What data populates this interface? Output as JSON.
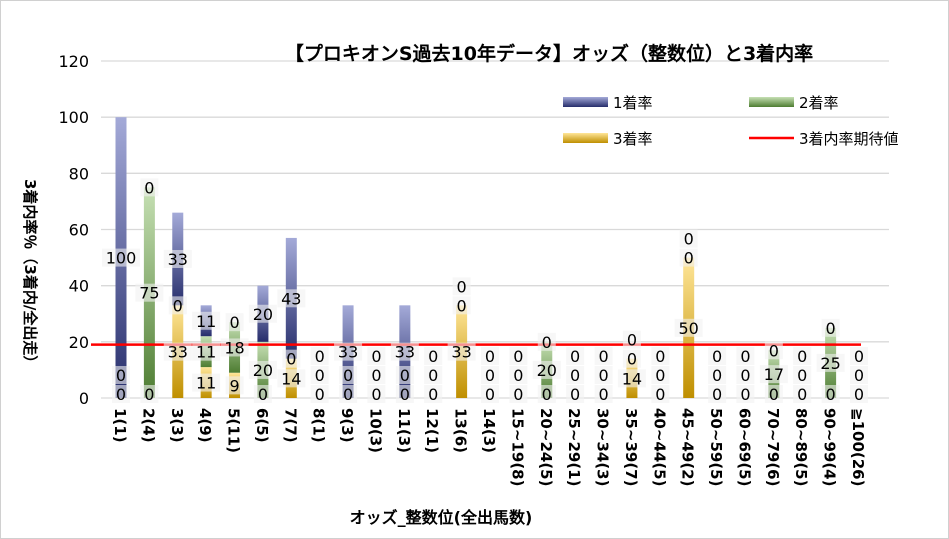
{
  "chart_data": {
    "type": "bar",
    "stacked": true,
    "title": "【プロキオンS過去10年データ】オッズ（整数位）と3着内率",
    "xlabel": "オッズ_整数位(全出馬数)",
    "ylabel": "3着内率％（3着内/全出走）",
    "ylim": [
      0,
      120
    ],
    "yticks": [
      0,
      20,
      40,
      60,
      80,
      100,
      120
    ],
    "grid": true,
    "legend_position": "top-right",
    "categories": [
      "1(1)",
      "2(4)",
      "3(3)",
      "4(9)",
      "5(11)",
      "6(5)",
      "7(7)",
      "8(1)",
      "9(3)",
      "10(3)",
      "11(3)",
      "12(1)",
      "13(6)",
      "14(3)",
      "15~19(8)",
      "20~24(5)",
      "25~29(1)",
      "30~34(3)",
      "35~39(7)",
      "40~44(5)",
      "45~49(2)",
      "50~59(5)",
      "60~69(5)",
      "70~79(6)",
      "80~89(5)",
      "90~99(4)",
      "≧100(26)"
    ],
    "series": [
      {
        "name": "3着率",
        "color": "#c9961a",
        "values": [
          0,
          0,
          33,
          11,
          9,
          0,
          14,
          0,
          0,
          0,
          0,
          0,
          33,
          0,
          0,
          0,
          0,
          0,
          14,
          0,
          50,
          0,
          0,
          0,
          0,
          0,
          0
        ]
      },
      {
        "name": "2着率",
        "color": "#70ad47",
        "values": [
          0,
          75,
          0,
          11,
          18,
          20,
          0,
          0,
          0,
          0,
          0,
          0,
          0,
          0,
          0,
          20,
          0,
          0,
          0,
          0,
          0,
          0,
          0,
          17,
          0,
          25,
          0
        ]
      },
      {
        "name": "1着率",
        "color": "#4a55a2",
        "values": [
          100,
          0,
          33,
          11,
          0,
          20,
          43,
          0,
          33,
          0,
          33,
          0,
          0,
          0,
          0,
          0,
          0,
          0,
          0,
          0,
          0,
          0,
          0,
          0,
          0,
          0,
          0
        ]
      }
    ],
    "reference_line": {
      "name": "3着内率期待値",
      "value": 19,
      "color": "#ff0000"
    }
  }
}
